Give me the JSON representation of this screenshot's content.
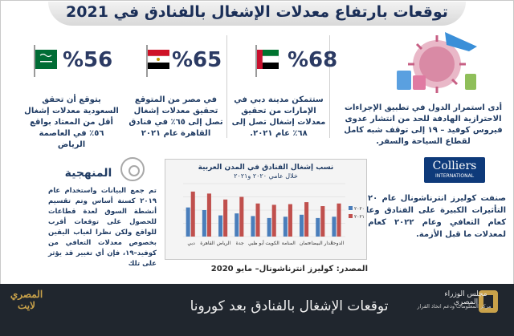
{
  "title": "توقعات بارتفاع معدلات الإشغال بالفنادق في 2021",
  "cards": [
    {
      "pct": "%68",
      "text": "ستتمكن مدينة دبي في الإمارات من تحقيق معدلات إشغال تصل إلى ٦٨٪ عام ٢٠٢١."
    },
    {
      "pct": "%65",
      "text": "في مصر من المتوقع تحقيق معدلات إشغال تصل إلى ٦٥٪ في فنادق القاهرة عام ٢٠٢١"
    },
    {
      "pct": "%56",
      "text": "يتوقع أن تحقق السعودية معدلات إشغال أقل من المعتاد بواقع ٥٦٪ في العاصمة الرياض"
    }
  ],
  "intro": "أدى استمرار الدول في تطبيق الإجراءات الاحترازية الهادفة للحد من انتشار عدوى فيروس كوفيد – ١٩ إلى توقف شبه كامل لقطاع السياحة والسفر.",
  "colliers": {
    "name": "Colliers",
    "sub": "INTERNATIONAL"
  },
  "conclusion": "صنفت كوليرز انترناشونال عام ٢٠٢٠ كعام التأثيرات الكبيرة على الفنادق وعام ٢٠٢١ كعام التعافي وعام ٢٠٢٢ كعام العودة لمعدلات ما قبل الأزمة.",
  "method": {
    "title": "المنهجية",
    "text": "تم جمع البيانات واستخدام عام ٢٠١٩ كسنة أساس وتم تقسيم أنشطة السوق لعدة قطاعات للحصول على توقعات أقرب للواقع ولكن نظرا لغياب اليقين بخصوص معدلات التعافي من كوفيد–١٩، فإن أي تغيير قد يؤثر على تلك"
  },
  "chart_data": {
    "type": "bar",
    "title": "نسب إشغال الفنادق في المدن العربية",
    "subtitle": "خلال عامي ٢٠٢٠ و٢٠٢١",
    "categories": [
      "دبي",
      "القاهرة",
      "الرياض",
      "جدة",
      "أبو ظبي",
      "الكويت",
      "المنامة",
      "عمان",
      "الدار البيضاء",
      "الدوحة"
    ],
    "series": [
      {
        "name": "٢٠٢٠",
        "color": "#4a7ebb",
        "values": [
          44,
          40,
          32,
          35,
          31,
          28,
          30,
          33,
          28,
          30
        ]
      },
      {
        "name": "٢٠٢١",
        "color": "#c0504d",
        "values": [
          68,
          65,
          56,
          60,
          50,
          48,
          49,
          52,
          46,
          50
        ]
      }
    ],
    "ylim": [
      0,
      80
    ]
  },
  "source": "المصدر: كوليرز انترناشونال– مايو 2020",
  "bottom_title": "توقعات الإشغال بالفنادق بعد كورونا",
  "org_name": "مجلس الوزراء المصري",
  "org_sub": "مركز المعلومات ودعم اتخاذ القرار",
  "logo2": "المصري لايت"
}
